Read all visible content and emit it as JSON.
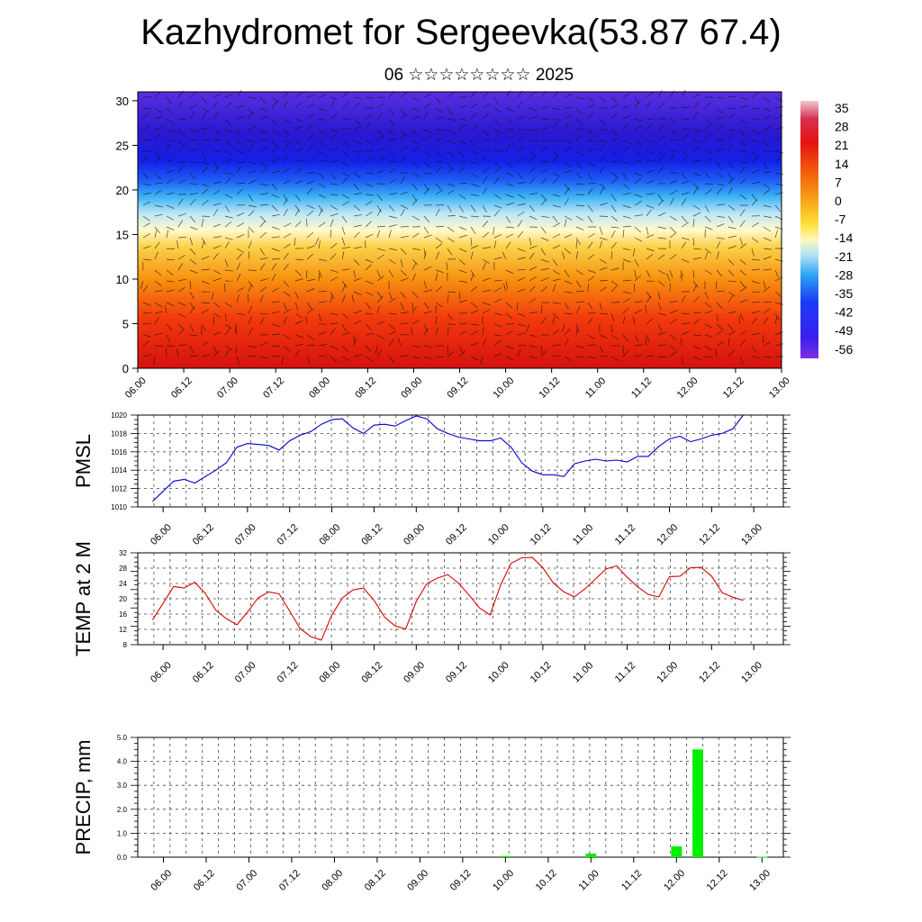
{
  "header": {
    "title": "Kazhydromet for Sergeevka(53.87 67.4)",
    "subtitle": "06 ☆☆☆☆☆☆☆☆ 2025"
  },
  "time_ticks": [
    "06.00",
    "06.12",
    "07.00",
    "07.12",
    "08.00",
    "08.12",
    "09.00",
    "09.12",
    "10.00",
    "10.12",
    "11.00",
    "11.12",
    "12.00",
    "12.12",
    "13.00"
  ],
  "chart_data": [
    {
      "type": "heatmap",
      "name_hint": "vertical temperature cross-section",
      "ylim": [
        0,
        31
      ],
      "yticks": [
        0,
        5,
        10,
        15,
        20,
        25,
        30
      ],
      "colorbar": {
        "labels": [
          "35",
          "28",
          "21",
          "14",
          "7",
          "0",
          "-7",
          "-14",
          "-21",
          "-28",
          "-35",
          "-42",
          "-49",
          "-56"
        ],
        "range": [
          -60,
          38
        ]
      }
    },
    {
      "type": "line",
      "ylabel": "PMSL",
      "ylim": [
        1010,
        1020
      ],
      "yticks": [
        1010,
        1012,
        1014,
        1016,
        1018,
        1020
      ],
      "color": "#0000cc",
      "values": [
        1010.6,
        1011.7,
        1012.8,
        1013.0,
        1012.6,
        1013.3,
        1014.0,
        1014.8,
        1016.5,
        1016.9,
        1016.8,
        1016.7,
        1016.2,
        1017.2,
        1017.8,
        1018.2,
        1019.0,
        1019.5,
        1019.6,
        1018.6,
        1018.0,
        1018.9,
        1019.0,
        1018.8,
        1019.4,
        1019.9,
        1019.6,
        1018.5,
        1018.0,
        1017.6,
        1017.4,
        1017.2,
        1017.2,
        1017.5,
        1016.5,
        1014.8,
        1013.9,
        1013.5,
        1013.5,
        1013.3,
        1014.7,
        1015.0,
        1015.2,
        1015.0,
        1015.1,
        1014.9,
        1015.5,
        1015.5,
        1016.6,
        1017.4,
        1017.7,
        1017.1,
        1017.4,
        1017.8,
        1018.0,
        1018.5,
        1020.0
      ]
    },
    {
      "type": "line",
      "ylabel": "TEMP at 2 M",
      "ylim": [
        8,
        32
      ],
      "yticks": [
        8,
        12,
        16,
        20,
        24,
        28,
        32
      ],
      "color": "#e00000",
      "values": [
        14.5,
        18.8,
        23.2,
        22.8,
        24.3,
        21.4,
        17.0,
        14.8,
        13.2,
        16.5,
        20.2,
        21.8,
        21.3,
        16.8,
        12.2,
        10.1,
        9.2,
        15.8,
        20.2,
        22.3,
        22.8,
        19.6,
        15.2,
        12.9,
        12.1,
        19.3,
        23.9,
        25.4,
        26.3,
        24.1,
        21.0,
        17.6,
        15.8,
        23.6,
        29.3,
        30.7,
        30.8,
        28.1,
        24.1,
        21.8,
        20.5,
        22.6,
        25.2,
        27.8,
        28.6,
        25.6,
        23.1,
        21.1,
        20.5,
        25.8,
        25.9,
        28.1,
        28.2,
        25.9,
        21.6,
        20.4,
        19.6
      ]
    },
    {
      "type": "bar",
      "ylabel": "PRECIP, mm",
      "ylim": [
        0,
        5
      ],
      "yticks": [
        "0.0",
        "1.0",
        "2.0",
        "3.0",
        "4.0",
        "5.0"
      ],
      "color": "#00ee00",
      "bars": [
        {
          "t": 10.0,
          "value": 0.05
        },
        {
          "t": 10.5,
          "value": 0.0
        },
        {
          "t": 11.0,
          "value": 0.15
        },
        {
          "t": 12.0,
          "value": 0.45
        },
        {
          "t": 12.25,
          "value": 4.5
        },
        {
          "t": 12.5,
          "value": 0.0
        },
        {
          "t": 13.0,
          "value": 0.02
        }
      ]
    }
  ]
}
